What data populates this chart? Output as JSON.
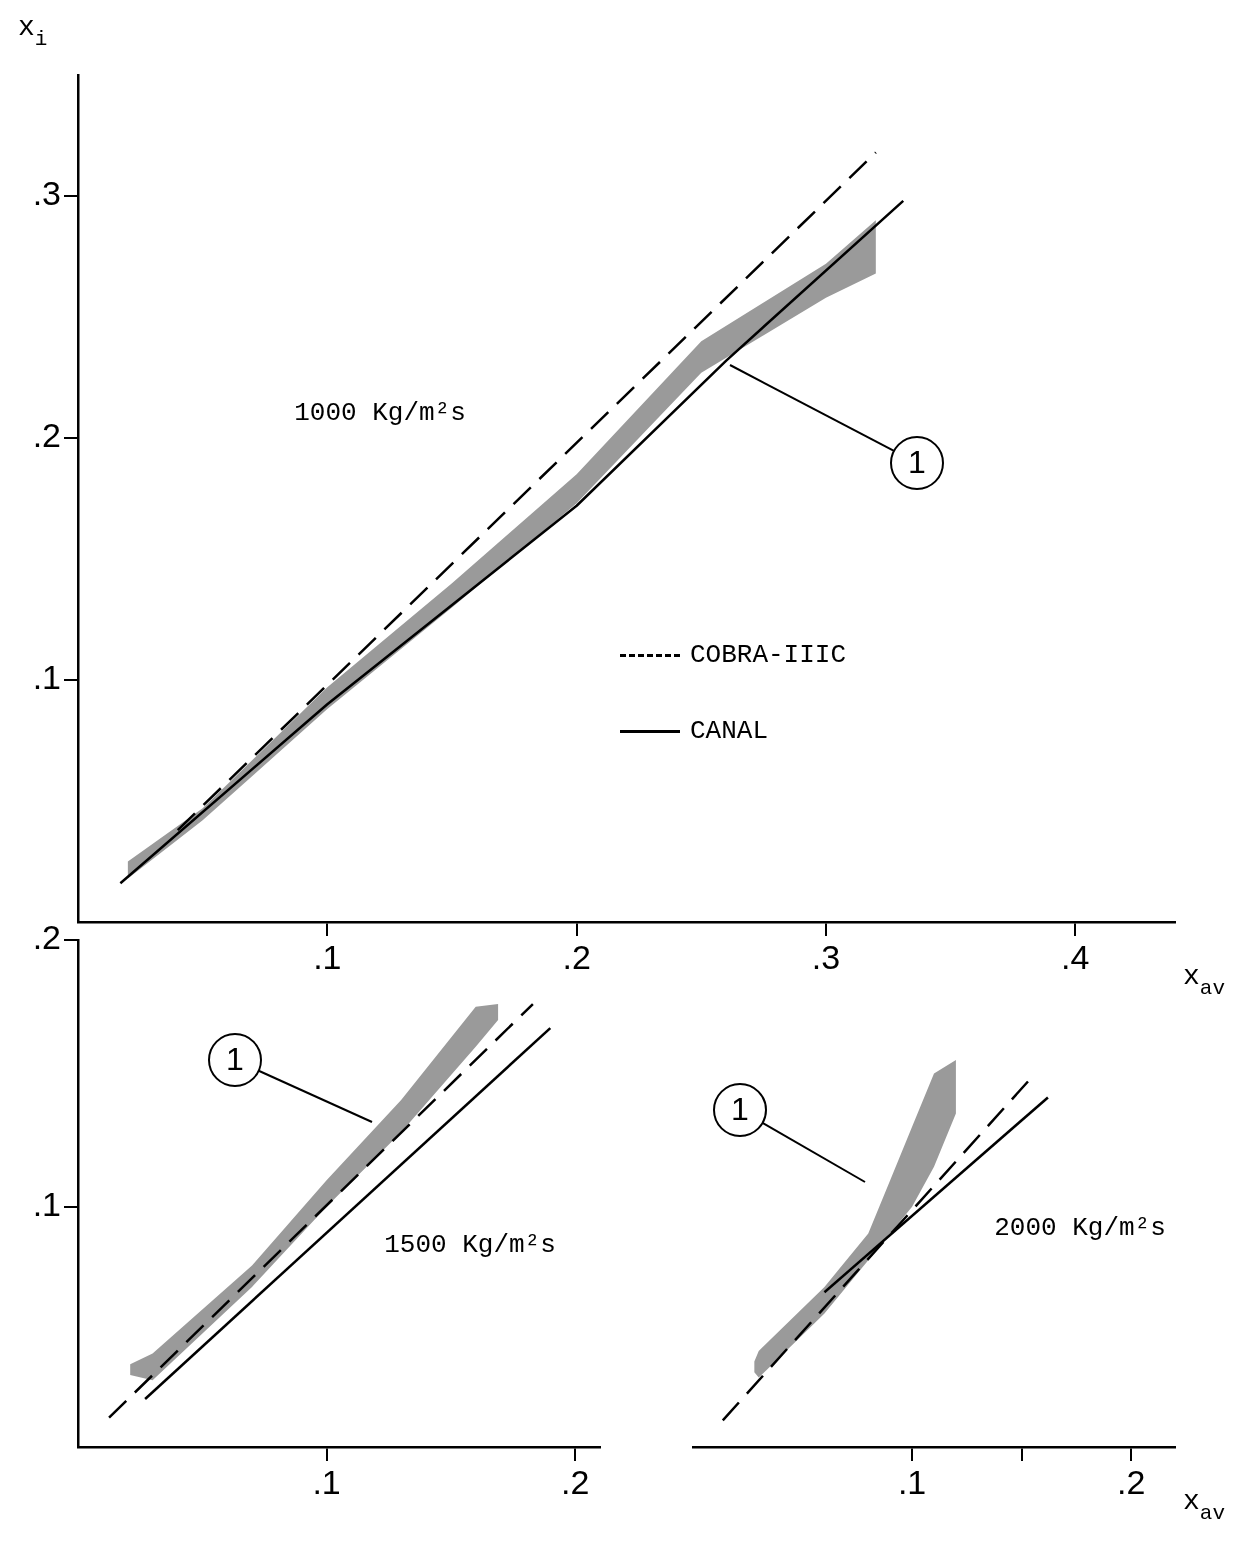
{
  "chart_data": [
    {
      "type": "line",
      "xlabel": "x$_{av}$",
      "ylabel": "x$_{i}$",
      "xlim": [
        0,
        0.44
      ],
      "ylim": [
        0,
        0.35
      ],
      "xticks": [
        {
          "value": 0.1,
          "label": ".1"
        },
        {
          "value": 0.2,
          "label": ".2"
        },
        {
          "value": 0.3,
          "label": ".3"
        },
        {
          "value": 0.4,
          "label": ".4"
        }
      ],
      "yticks": [
        {
          "value": 0.1,
          "label": ".1"
        },
        {
          "value": 0.2,
          "label": ".2"
        },
        {
          "value": 0.3,
          "label": ".3"
        }
      ],
      "legend": "bottom right",
      "annotations": [
        "1000 Kg/m²s",
        "1"
      ],
      "series": [
        {
          "name": "COBRA-IIIC",
          "color": "#000000",
          "line_style": "dashed",
          "x": [
            0.04,
            0.32
          ],
          "values": [
            0.038,
            0.318
          ]
        },
        {
          "name": "CANAL",
          "color": "#000000",
          "line_style": "solid",
          "x": [
            0.017,
            0.1,
            0.2,
            0.26,
            0.331
          ],
          "values": [
            0.016,
            0.09,
            0.172,
            0.232,
            0.298
          ]
        },
        {
          "type": "area",
          "color": "#9a9a9a",
          "x": [
            0.02,
            0.05,
            0.1,
            0.15,
            0.2,
            0.25,
            0.3,
            0.32
          ],
          "values": [
            null,
            null,
            null,
            null,
            null,
            null,
            null,
            null
          ],
          "lower": [
            0.018,
            0.042,
            0.088,
            0.13,
            0.173,
            0.227,
            0.258,
            0.268
          ],
          "upper": [
            0.025,
            0.047,
            0.097,
            0.14,
            0.185,
            0.24,
            0.272,
            0.29
          ]
        }
      ]
    },
    {
      "type": "line",
      "xlim": [
        0,
        0.21
      ],
      "ylim": [
        0.01,
        0.2
      ],
      "xticks": [
        {
          "value": 0.1,
          "label": ".1"
        },
        {
          "value": 0.2,
          "label": ".2"
        }
      ],
      "yticks": [
        {
          "value": 0.1,
          "label": ".1"
        },
        {
          "value": 0.2,
          "label": ".2"
        }
      ],
      "annotations": [
        "1500 Kg/m²s",
        "1"
      ],
      "series": [
        {
          "color": "#000000",
          "line_style": "dashed",
          "x": [
            0.0125,
            0.183
          ],
          "values": [
            0.021,
            0.176
          ]
        },
        {
          "color": "#000000",
          "line_style": "solid",
          "x": [
            0.027,
            0.19
          ],
          "values": [
            0.028,
            0.167
          ]
        },
        {
          "type": "area",
          "color": "#9a9a9a",
          "x": [
            0.021,
            0.03,
            0.07,
            0.1,
            0.13,
            0.16,
            0.169
          ],
          "values": [
            null,
            null,
            null,
            null,
            null,
            null,
            null
          ],
          "lower": [
            0.037,
            0.035,
            0.07,
            0.1,
            0.128,
            0.16,
            0.17
          ],
          "upper": [
            0.041,
            0.045,
            0.078,
            0.11,
            0.14,
            0.175,
            0.176
          ]
        }
      ]
    },
    {
      "type": "line",
      "xlabel": "x$_{av}$",
      "xlim": [
        0,
        0.22
      ],
      "ylim": [
        0.01,
        0.2
      ],
      "xticks": [
        {
          "value": 0.1,
          "label": ".1"
        },
        {
          "value": 0.15,
          "label": null
        },
        {
          "value": 0.2,
          "label": ".2"
        }
      ],
      "tick_labels": "x",
      "annotations": [
        "2000 Kg/m²s",
        "1"
      ],
      "series": [
        {
          "color": "#000000",
          "line_style": "dashed",
          "x": [
            0.0136,
            0.154
          ],
          "values": [
            0.02,
            0.148
          ]
        },
        {
          "color": "#000000",
          "line_style": "solid",
          "x": [
            0.06,
            0.162
          ],
          "values": [
            0.068,
            0.141
          ]
        },
        {
          "type": "area",
          "color": "#9a9a9a",
          "x": [
            0.028,
            0.03,
            0.06,
            0.08,
            0.09,
            0.1,
            0.11,
            0.12
          ],
          "values": [
            null,
            null,
            null,
            null,
            null,
            null,
            null,
            null
          ],
          "lower": [
            0.038,
            0.036,
            0.06,
            0.08,
            0.09,
            0.1,
            0.115,
            0.135
          ],
          "upper": [
            0.042,
            0.046,
            0.07,
            0.09,
            0.11,
            0.13,
            0.15,
            0.155
          ]
        }
      ]
    }
  ]
}
